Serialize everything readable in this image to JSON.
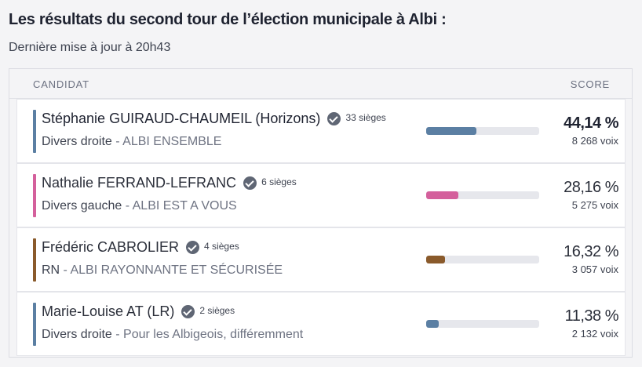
{
  "page": {
    "title": "Les résultats du second tour de l’élection municipale à Albi :",
    "updated": "Dernière mise à jour à 20h43"
  },
  "table": {
    "col_candidate": "CANDIDAT",
    "col_score": "SCORE"
  },
  "candidates": [
    {
      "name": "Stéphanie GUIRAUD-CHAUMEIL (Horizons)",
      "seats": "33 sièges",
      "nuance": "Divers droite",
      "sep": " - ",
      "list": "ALBI ENSEMBLE",
      "pct": "44,14 %",
      "votes": "8 268 voix",
      "share": 0.4414,
      "color": "#5b7fa3",
      "icon": "check-circle-icon"
    },
    {
      "name": "Nathalie FERRAND-LEFRANC",
      "seats": "6 sièges",
      "nuance": "Divers gauche",
      "sep": " - ",
      "list": "ALBI EST A VOUS",
      "pct": "28,16 %",
      "votes": "5 275 voix",
      "share": 0.2816,
      "color": "#d4609c",
      "icon": "check-circle-icon"
    },
    {
      "name": "Frédéric CABROLIER",
      "seats": "4 sièges",
      "nuance": "RN",
      "sep": " - ",
      "list": "ALBI RAYONNANTE ET SÉCURISÉE",
      "pct": "16,32 %",
      "votes": "3 057 voix",
      "share": 0.1632,
      "color": "#8a5a2b",
      "icon": "check-circle-icon"
    },
    {
      "name": "Marie-Louise AT (LR)",
      "seats": "2 sièges",
      "nuance": "Divers droite",
      "sep": " - ",
      "list": "Pour les Albigeois, différemment",
      "pct": "11,38 %",
      "votes": "2 132 voix",
      "share": 0.1138,
      "color": "#5b7fa3",
      "icon": "check-circle-icon"
    }
  ]
}
